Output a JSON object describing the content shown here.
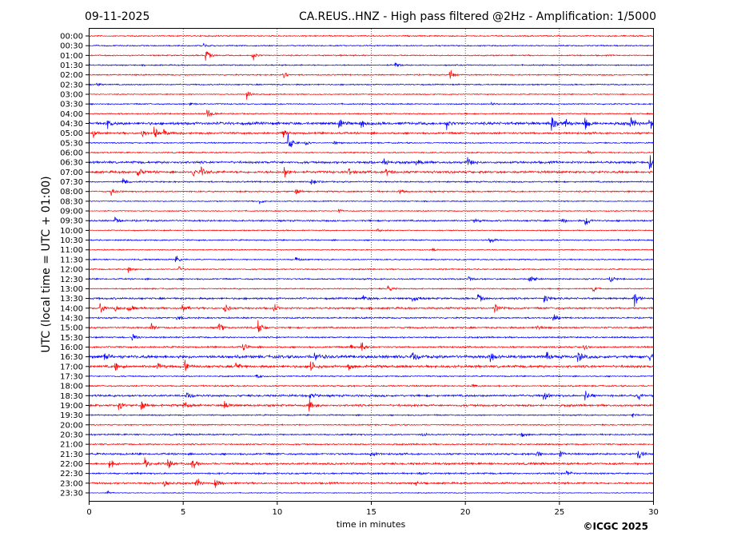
{
  "chart_data": {
    "type": "line",
    "title_left": "09-11-2025",
    "title": "CA.REUS..HNZ - High pass filtered @2Hz - Amplification: 1/5000",
    "xlabel": "time in minutes",
    "ylabel": "UTC (local time = UTC + 01:00)",
    "xlim": [
      0,
      30
    ],
    "xticks": [
      0,
      5,
      10,
      15,
      20,
      25,
      30
    ],
    "grid": "vertical dotted",
    "credit": "©ICGC 2025",
    "colors": {
      "hour": "#ff0000",
      "half_hour": "#0000ff"
    },
    "rows": [
      {
        "label": "00:00",
        "noise": 0.6,
        "events": []
      },
      {
        "label": "00:30",
        "noise": 0.6,
        "events": [
          [
            6.1,
            3
          ]
        ]
      },
      {
        "label": "01:00",
        "noise": 0.6,
        "events": [
          [
            6.2,
            8
          ],
          [
            8.7,
            6
          ]
        ]
      },
      {
        "label": "01:30",
        "noise": 0.6,
        "events": [
          [
            16.3,
            3
          ]
        ]
      },
      {
        "label": "02:00",
        "noise": 0.6,
        "events": [
          [
            10.3,
            5
          ],
          [
            19.2,
            6
          ]
        ]
      },
      {
        "label": "02:30",
        "noise": 0.6,
        "events": [
          [
            0.4,
            3
          ]
        ]
      },
      {
        "label": "03:00",
        "noise": 0.5,
        "events": [
          [
            8.4,
            8
          ]
        ]
      },
      {
        "label": "03:30",
        "noise": 0.6,
        "events": [
          [
            5.4,
            3
          ],
          [
            21.4,
            2
          ]
        ]
      },
      {
        "label": "04:00",
        "noise": 0.6,
        "events": [
          [
            6.3,
            8
          ]
        ]
      },
      {
        "label": "04:30",
        "noise": 1.3,
        "events": [
          [
            1,
            4
          ],
          [
            13.3,
            6
          ],
          [
            14.5,
            5
          ],
          [
            19,
            6
          ],
          [
            24.6,
            10
          ],
          [
            25.3,
            8
          ],
          [
            26.4,
            7
          ],
          [
            28.8,
            10
          ],
          [
            29.8,
            7
          ]
        ]
      },
      {
        "label": "05:00",
        "noise": 1.0,
        "events": [
          [
            0.2,
            6
          ],
          [
            2.8,
            5
          ],
          [
            3.5,
            6
          ],
          [
            4,
            6
          ],
          [
            10.3,
            5
          ]
        ]
      },
      {
        "label": "05:30",
        "noise": 0.6,
        "events": [
          [
            10.6,
            14
          ],
          [
            11.5,
            3
          ],
          [
            13,
            3
          ]
        ]
      },
      {
        "label": "06:00",
        "noise": 0.6,
        "events": [
          [
            26.5,
            3
          ]
        ]
      },
      {
        "label": "06:30",
        "noise": 1.1,
        "events": [
          [
            15.7,
            6
          ],
          [
            17.4,
            4
          ],
          [
            20.1,
            7
          ],
          [
            29.8,
            8
          ]
        ]
      },
      {
        "label": "07:00",
        "noise": 1.1,
        "events": [
          [
            2.6,
            6
          ],
          [
            5.5,
            6
          ],
          [
            6,
            6
          ],
          [
            10.4,
            8
          ],
          [
            13.8,
            5
          ],
          [
            15.8,
            5
          ]
        ]
      },
      {
        "label": "07:30",
        "noise": 0.7,
        "events": [
          [
            1.8,
            5
          ],
          [
            11.8,
            6
          ]
        ]
      },
      {
        "label": "08:00",
        "noise": 0.7,
        "events": [
          [
            1.2,
            5
          ],
          [
            11,
            4
          ],
          [
            16.5,
            3
          ]
        ]
      },
      {
        "label": "08:30",
        "noise": 0.5,
        "events": [
          [
            9.1,
            3
          ]
        ]
      },
      {
        "label": "09:00",
        "noise": 0.5,
        "events": [
          [
            13.3,
            2
          ]
        ]
      },
      {
        "label": "09:30",
        "noise": 0.8,
        "events": [
          [
            1.4,
            4
          ],
          [
            20.5,
            3
          ],
          [
            25.1,
            5
          ],
          [
            26.4,
            8
          ]
        ]
      },
      {
        "label": "10:00",
        "noise": 0.5,
        "events": [
          [
            15.3,
            3
          ]
        ]
      },
      {
        "label": "10:30",
        "noise": 0.6,
        "events": [
          [
            21.3,
            7
          ]
        ]
      },
      {
        "label": "11:00",
        "noise": 0.5,
        "events": [
          [
            18.3,
            2
          ]
        ]
      },
      {
        "label": "11:30",
        "noise": 0.6,
        "events": [
          [
            4.6,
            6
          ],
          [
            11,
            3
          ]
        ]
      },
      {
        "label": "12:00",
        "noise": 0.6,
        "events": [
          [
            2.1,
            5
          ],
          [
            4.8,
            4
          ]
        ]
      },
      {
        "label": "12:30",
        "noise": 0.7,
        "events": [
          [
            20.2,
            3
          ],
          [
            23.4,
            9
          ],
          [
            27.7,
            5
          ]
        ]
      },
      {
        "label": "13:00",
        "noise": 0.6,
        "events": [
          [
            15.9,
            5
          ],
          [
            26.8,
            3
          ]
        ]
      },
      {
        "label": "13:30",
        "noise": 0.9,
        "events": [
          [
            14.6,
            4
          ],
          [
            17.2,
            5
          ],
          [
            20.7,
            5
          ],
          [
            24.2,
            7
          ],
          [
            29,
            9
          ]
        ]
      },
      {
        "label": "14:00",
        "noise": 0.9,
        "events": [
          [
            0.6,
            6
          ],
          [
            1.4,
            5
          ],
          [
            2.1,
            6
          ],
          [
            5,
            5
          ],
          [
            7.2,
            7
          ],
          [
            9.8,
            6
          ],
          [
            21.6,
            5
          ]
        ]
      },
      {
        "label": "14:30",
        "noise": 0.7,
        "events": [
          [
            4.7,
            4
          ],
          [
            24.7,
            5
          ]
        ]
      },
      {
        "label": "15:00",
        "noise": 0.8,
        "events": [
          [
            3.3,
            5
          ],
          [
            6.9,
            6
          ],
          [
            9,
            7
          ],
          [
            23.8,
            4
          ]
        ]
      },
      {
        "label": "15:30",
        "noise": 0.7,
        "events": [
          [
            2.3,
            6
          ]
        ]
      },
      {
        "label": "16:00",
        "noise": 0.8,
        "events": [
          [
            8.2,
            5
          ],
          [
            13.9,
            4
          ],
          [
            14.5,
            8
          ],
          [
            26.3,
            4
          ]
        ]
      },
      {
        "label": "16:30",
        "noise": 1.4,
        "events": [
          [
            0.8,
            6
          ],
          [
            12,
            7
          ],
          [
            17.2,
            7
          ],
          [
            21.3,
            7
          ],
          [
            24.3,
            6
          ],
          [
            26,
            8
          ],
          [
            29.8,
            8
          ]
        ]
      },
      {
        "label": "17:00",
        "noise": 1.2,
        "events": [
          [
            1.4,
            7
          ],
          [
            3.6,
            6
          ],
          [
            5.1,
            7
          ],
          [
            7.8,
            6
          ],
          [
            11.8,
            8
          ],
          [
            13.8,
            4
          ]
        ]
      },
      {
        "label": "17:30",
        "noise": 0.6,
        "events": [
          [
            8.9,
            3
          ]
        ]
      },
      {
        "label": "18:00",
        "noise": 0.7,
        "events": [
          [
            20.3,
            3
          ]
        ]
      },
      {
        "label": "18:30",
        "noise": 1.0,
        "events": [
          [
            5.2,
            5
          ],
          [
            11.7,
            5
          ],
          [
            24.2,
            5
          ],
          [
            26.4,
            5
          ],
          [
            29.2,
            6
          ]
        ]
      },
      {
        "label": "19:00",
        "noise": 1.0,
        "events": [
          [
            1.6,
            5
          ],
          [
            2.8,
            6
          ],
          [
            5,
            6
          ],
          [
            7.2,
            6
          ],
          [
            11.7,
            8
          ]
        ]
      },
      {
        "label": "19:30",
        "noise": 0.6,
        "events": [
          [
            28.9,
            3
          ]
        ]
      },
      {
        "label": "20:00",
        "noise": 0.6,
        "events": []
      },
      {
        "label": "20:30",
        "noise": 0.7,
        "events": [
          [
            17.7,
            4
          ],
          [
            23,
            3
          ]
        ]
      },
      {
        "label": "21:00",
        "noise": 0.7,
        "events": []
      },
      {
        "label": "21:30",
        "noise": 0.9,
        "events": [
          [
            15,
            4
          ],
          [
            23.8,
            5
          ],
          [
            25,
            4
          ],
          [
            29.2,
            8
          ]
        ]
      },
      {
        "label": "22:00",
        "noise": 1.0,
        "events": [
          [
            1.1,
            6
          ],
          [
            3,
            6
          ],
          [
            4.2,
            7
          ],
          [
            5.5,
            7
          ]
        ]
      },
      {
        "label": "22:30",
        "noise": 0.8,
        "events": [
          [
            17.5,
            3
          ],
          [
            25.4,
            5
          ]
        ]
      },
      {
        "label": "23:00",
        "noise": 0.9,
        "events": [
          [
            4,
            6
          ],
          [
            5.7,
            7
          ],
          [
            6.7,
            8
          ],
          [
            17.4,
            3
          ]
        ]
      },
      {
        "label": "23:30",
        "noise": 0.4,
        "events": [
          [
            1,
            2
          ]
        ]
      }
    ]
  }
}
